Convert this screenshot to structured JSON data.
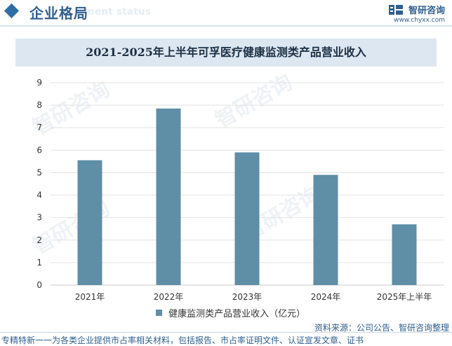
{
  "header": {
    "title": "企业格局",
    "ghost_text": "ment status",
    "brand_name": "智研咨询",
    "brand_url": "www.chyxx.com"
  },
  "chart_data": {
    "type": "bar",
    "title": "2021-2025年上半年可孚医疗健康监测类产品营业收入",
    "categories": [
      "2021年",
      "2022年",
      "2023年",
      "2024年",
      "2025年上半年"
    ],
    "series": [
      {
        "name": "健康监测类产品营业收入（亿元）",
        "values": [
          5.55,
          7.85,
          5.9,
          4.9,
          2.7
        ]
      }
    ],
    "xlabel": "",
    "ylabel": "",
    "ylim": [
      0,
      9
    ],
    "yticks": [
      0,
      1,
      2,
      3,
      4,
      5,
      6,
      7,
      8,
      9
    ],
    "grid": true,
    "legend_position": "bottom",
    "bar_color": "#5f8ea7"
  },
  "source": "资料来源：公司公告、智研咨询整理",
  "footer": "专精特新一一为各类企业提供市占率相关材料，包括报告、市占率证明文件、认证宣发文章、证书",
  "watermark": "智研咨询"
}
